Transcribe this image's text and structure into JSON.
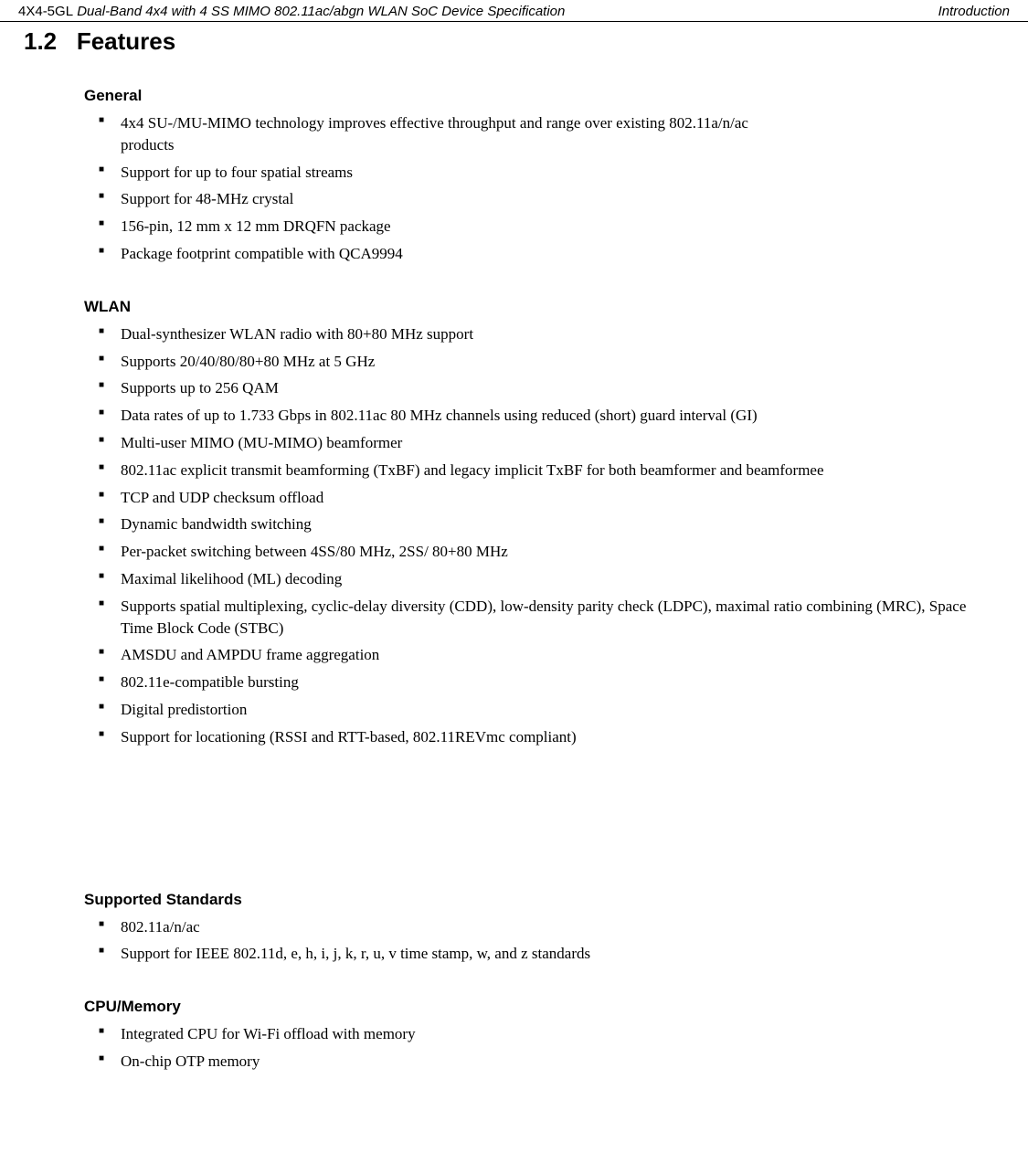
{
  "header": {
    "left_prefix": "4X4-5GL",
    "left_title": " Dual-Band 4x4 with 4 SS MIMO 802.11ac/abgn WLAN SoC Device Specification",
    "right": "Introduction"
  },
  "section": {
    "number": "1.2",
    "title": "Features"
  },
  "groups": [
    {
      "heading": "General",
      "items": [
        "4x4 SU-/MU-MIMO technology improves effective throughput and range over existing 802.11a/n/ac\nproducts",
        "Support for up to four spatial streams",
        "Support for 48-MHz crystal",
        "156-pin, 12 mm x 12 mm DRQFN package",
        "Package footprint compatible with QCA9994"
      ]
    },
    {
      "heading": "WLAN",
      "items": [
        "Dual-synthesizer WLAN radio with 80+80 MHz support",
        "Supports 20/40/80/80+80 MHz at 5 GHz",
        "Supports up to 256 QAM",
        "Data rates of up to 1.733 Gbps in 802.11ac 80 MHz channels using reduced (short) guard interval (GI)",
        "Multi-user MIMO (MU-MIMO) beamformer",
        "802.11ac explicit transmit beamforming (TxBF) and legacy implicit TxBF for both beamformer and beamformee",
        "TCP and UDP checksum offload",
        "Dynamic bandwidth switching",
        "Per-packet switching between 4SS/80 MHz, 2SS/ 80+80 MHz",
        "Maximal likelihood (ML) decoding",
        "Supports spatial multiplexing, cyclic-delay diversity (CDD), low-density parity check (LDPC), maximal ratio combining (MRC), Space Time Block Code (STBC)",
        "AMSDU and AMPDU frame aggregation",
        "802.11e-compatible bursting",
        "Digital predistortion",
        "Support for locationing (RSSI and RTT-based, 802.11REVmc compliant)"
      ]
    },
    {
      "heading": "Supported Standards",
      "items": [
        "802.11a/n/ac",
        "Support for IEEE 802.11d, e, h, i, j, k, r, u, v time stamp, w, and z standards"
      ]
    },
    {
      "heading": "CPU/Memory",
      "items": [
        "Integrated CPU for Wi-Fi offload with memory",
        "On-chip OTP memory"
      ]
    }
  ],
  "layout": {
    "gap_after_group_index": 1
  },
  "colors": {
    "text": "#000000",
    "background": "#ffffff"
  }
}
